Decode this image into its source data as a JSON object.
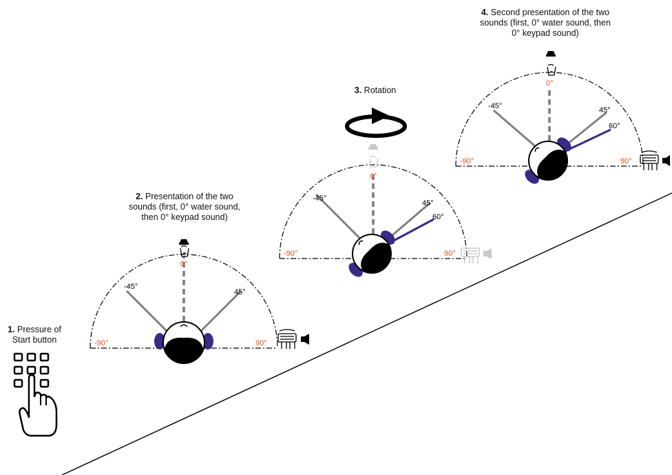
{
  "steps": [
    {
      "number": "1.",
      "line1": "Pressure of",
      "line2": "Start button",
      "line3": ""
    },
    {
      "number": "2.",
      "line1": "Presentation of the two",
      "line2": "sounds (first, 0° water sound,",
      "line3": "then 0° keypad sound)"
    },
    {
      "number": "3.",
      "line1": "Rotation",
      "line2": "",
      "line3": ""
    },
    {
      "number": "4.",
      "line1": "Second presentation of the two",
      "line2": "sounds (first, 0° water sound, then",
      "line3": "0° keypad sound)"
    }
  ],
  "angle_labels": {
    "left": "-90°",
    "center": "0°",
    "right": "90°",
    "minus45": "-45°",
    "plus45": "45°",
    "plus60": "60°"
  },
  "colors": {
    "accent_orange": "#e8501e",
    "purple": "#3a2a85",
    "gray_line": "#808080",
    "faded": "#c8c8c8"
  },
  "icons": [
    "keypad-icon",
    "hand-icon",
    "water-glass-icon",
    "speaker-icon",
    "keyboard-icon",
    "rotation-arrow-icon",
    "head-icon"
  ]
}
